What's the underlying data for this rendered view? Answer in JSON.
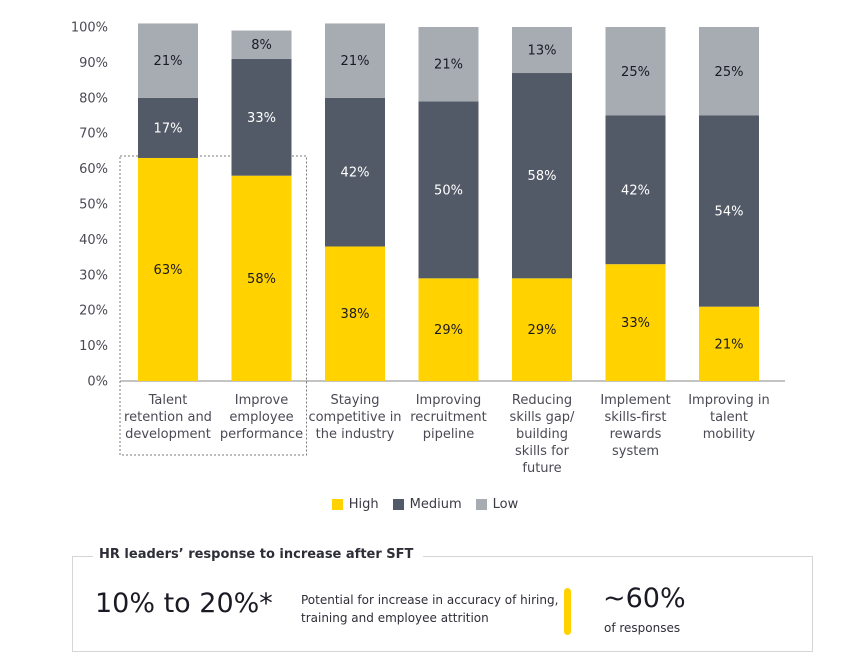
{
  "chart_data": {
    "type": "bar",
    "stacked": true,
    "categories": [
      "Talent retention and development",
      "Improve employee performance",
      "Staying competitive in the industry",
      "Improving recruitment pipeline",
      "Reducing skills gap/ building skills for future",
      "Implement skills-first rewards system",
      "Improving in talent mobility"
    ],
    "category_lines": [
      [
        "Talent",
        "retention and",
        "development"
      ],
      [
        "Improve",
        "employee",
        "performance"
      ],
      [
        "Staying",
        "competitive in",
        "the industry"
      ],
      [
        "Improving",
        "recruitment",
        "pipeline"
      ],
      [
        "Reducing",
        "skills gap/",
        "building",
        "skills for",
        "future"
      ],
      [
        "Implement",
        "skills-first",
        "rewards",
        "system"
      ],
      [
        "Improving in",
        "talent",
        "mobility"
      ]
    ],
    "series": [
      {
        "name": "High",
        "color": "#ffd200",
        "label_color": "#1a1a24",
        "values": [
          63,
          58,
          38,
          29,
          29,
          33,
          21
        ]
      },
      {
        "name": "Medium",
        "color": "#535a67",
        "label_color": "#ffffff",
        "values": [
          17,
          33,
          42,
          50,
          58,
          42,
          54
        ]
      },
      {
        "name": "Low",
        "color": "#a7abb2",
        "label_color": "#1a1a24",
        "values": [
          21,
          8,
          21,
          21,
          13,
          25,
          25
        ]
      }
    ],
    "y_ticks": [
      "0%",
      "10%",
      "20%",
      "30%",
      "40%",
      "50%",
      "60%",
      "70%",
      "80%",
      "90%",
      "100%"
    ],
    "ylim": [
      0,
      100
    ],
    "legend_position": "bottom-center",
    "highlight_categories": [
      0,
      1
    ]
  },
  "callout": {
    "title": "HR leaders’ response to increase after SFT",
    "range": "10% to 20%*",
    "description": "Potential for increase in accuracy of hiring, training and employee attrition",
    "stat": "~60%",
    "stat_label": "of responses",
    "accent_color": "#ffd200"
  }
}
